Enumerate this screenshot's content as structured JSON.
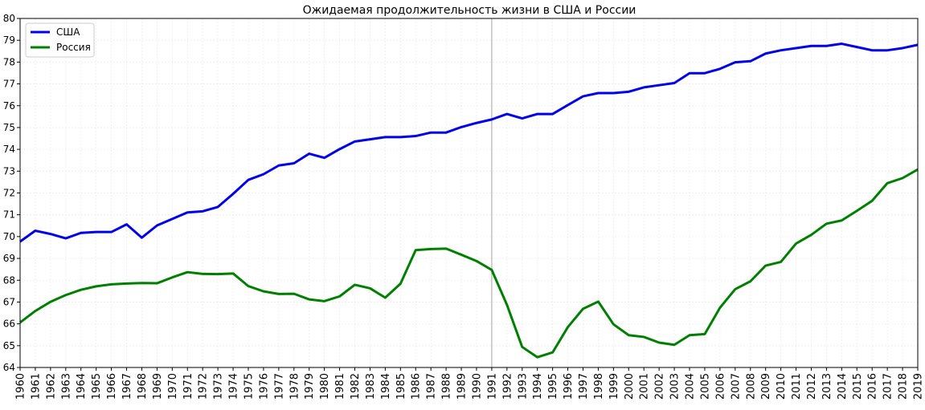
{
  "chart_data": {
    "type": "line",
    "title": "Ожидаемая продолжительность жизни в США и России",
    "xlabel": "",
    "ylabel": "",
    "xlim": [
      1960,
      2019
    ],
    "ylim": [
      64,
      80
    ],
    "yticks": [
      64,
      65,
      66,
      67,
      68,
      69,
      70,
      71,
      72,
      73,
      74,
      75,
      76,
      77,
      78,
      79,
      80
    ],
    "grid": true,
    "legend_position": "top-left",
    "vertical_marker_x": 1991,
    "x": [
      1960,
      1961,
      1962,
      1963,
      1964,
      1965,
      1966,
      1967,
      1968,
      1969,
      1970,
      1971,
      1972,
      1973,
      1974,
      1975,
      1976,
      1977,
      1978,
      1979,
      1980,
      1981,
      1982,
      1983,
      1984,
      1985,
      1986,
      1987,
      1988,
      1989,
      1990,
      1991,
      1992,
      1993,
      1994,
      1995,
      1996,
      1997,
      1998,
      1999,
      2000,
      2001,
      2002,
      2003,
      2004,
      2005,
      2006,
      2007,
      2008,
      2009,
      2010,
      2011,
      2012,
      2013,
      2014,
      2015,
      2016,
      2017,
      2018,
      2019
    ],
    "series": [
      {
        "name": "США",
        "color": "#0000ee",
        "values": [
          69.77,
          70.27,
          70.12,
          69.92,
          70.17,
          70.21,
          70.21,
          70.56,
          69.95,
          70.51,
          70.81,
          71.11,
          71.16,
          71.36,
          71.96,
          72.6,
          72.86,
          73.26,
          73.36,
          73.8,
          73.61,
          74.01,
          74.36,
          74.46,
          74.56,
          74.56,
          74.61,
          74.77,
          74.77,
          75.02,
          75.21,
          75.37,
          75.62,
          75.42,
          75.62,
          75.62,
          76.03,
          76.43,
          76.58,
          76.58,
          76.64,
          76.84,
          76.94,
          77.04,
          77.49,
          77.49,
          77.69,
          77.99,
          78.04,
          78.39,
          78.54,
          78.64,
          78.74,
          78.74,
          78.84,
          78.69,
          78.54,
          78.54,
          78.64,
          78.79
        ]
      },
      {
        "name": "Россия",
        "color": "#008000",
        "values": [
          66.06,
          66.59,
          67.01,
          67.32,
          67.56,
          67.72,
          67.81,
          67.85,
          67.87,
          67.86,
          68.13,
          68.37,
          68.29,
          68.28,
          68.31,
          67.73,
          67.49,
          67.37,
          67.38,
          67.12,
          67.04,
          67.26,
          67.79,
          67.63,
          67.2,
          67.84,
          69.38,
          69.43,
          69.45,
          69.17,
          68.88,
          68.47,
          66.87,
          64.94,
          64.47,
          64.69,
          65.85,
          66.69,
          67.02,
          65.98,
          65.48,
          65.4,
          65.14,
          65.04,
          65.48,
          65.53,
          66.74,
          67.59,
          67.95,
          68.67,
          68.84,
          69.68,
          70.08,
          70.59,
          70.74,
          71.18,
          71.64,
          72.45,
          72.68,
          73.08
        ]
      }
    ]
  }
}
